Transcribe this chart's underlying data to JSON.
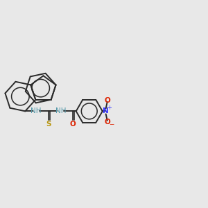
{
  "background_color": "#e8e8e8",
  "bond_color": "#2a2a2a",
  "bond_width": 1.4,
  "N_color": "#3333ff",
  "H_color": "#5599aa",
  "S_color": "#b8960c",
  "O_color": "#dd2200",
  "N_nitro_color": "#3333ff",
  "plus_color": "#3333ff",
  "minus_color": "#dd2200",
  "font_size": 7.5,
  "figsize": [
    3.0,
    3.0
  ],
  "dpi": 100,
  "xlim": [
    -1.5,
    5.8
  ],
  "ylim": [
    -2.2,
    2.2
  ]
}
